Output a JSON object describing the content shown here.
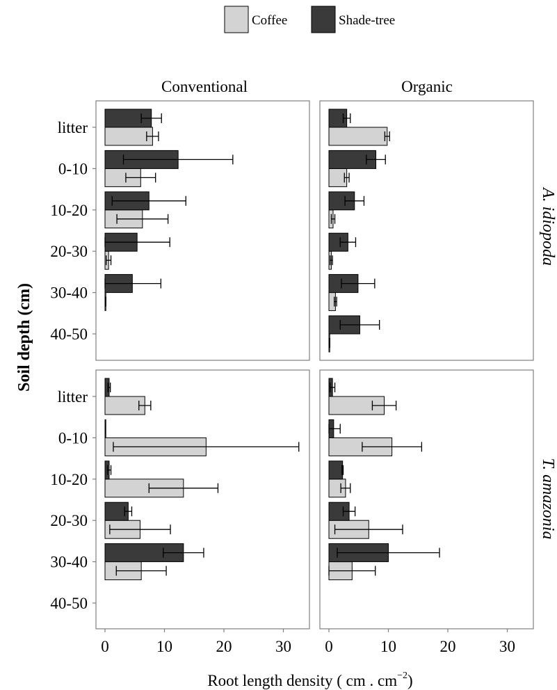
{
  "chart_data": {
    "type": "bar",
    "orientation": "horizontal",
    "faceted": true,
    "legend": {
      "placement": "top-center",
      "items": [
        {
          "label": "Coffee",
          "color": "#d3d3d3"
        },
        {
          "label": "Shade-tree",
          "color": "#3a3a3a"
        }
      ]
    },
    "xlabel_main": "Root length density ( cm . cm",
    "xlabel_sup": "−2",
    "xlabel_end": ")",
    "ylabel": "Soil depth (cm)",
    "categories": [
      "litter",
      "0-10",
      "10-20",
      "20-30",
      "30-40",
      "40-50"
    ],
    "xlim": [
      0,
      35
    ],
    "xticks": [
      0,
      10,
      20,
      30
    ],
    "grid": false,
    "column_labels": [
      "Conventional",
      "Organic"
    ],
    "row_labels": [
      "A. idiopoda",
      "T. amazonia"
    ],
    "panels": [
      {
        "column": "Conventional",
        "row": "A. idiopoda",
        "series": [
          {
            "name": "Coffee",
            "values": [
              8.0,
              6.0,
              6.3,
              0.6,
              0.1,
              null
            ],
            "errors": [
              1.0,
              2.5,
              4.3,
              0.4,
              0.05,
              null
            ]
          },
          {
            "name": "Shade-tree",
            "values": [
              7.8,
              12.3,
              7.4,
              5.4,
              4.6,
              null
            ],
            "errors": [
              1.7,
              9.2,
              6.2,
              5.5,
              4.8,
              null
            ]
          }
        ]
      },
      {
        "column": "Organic",
        "row": "A. idiopoda",
        "series": [
          {
            "name": "Coffee",
            "values": [
              9.8,
              3.0,
              0.7,
              0.4,
              1.1,
              0.1
            ],
            "errors": [
              0.4,
              0.4,
              0.3,
              0.2,
              0.2,
              0.05
            ]
          },
          {
            "name": "Shade-tree",
            "values": [
              3.0,
              7.9,
              4.3,
              3.2,
              4.9,
              5.2
            ],
            "errors": [
              0.6,
              1.6,
              1.6,
              1.3,
              2.8,
              3.3
            ]
          }
        ]
      },
      {
        "column": "Conventional",
        "row": "T. amazonia",
        "series": [
          {
            "name": "Coffee",
            "values": [
              6.7,
              17.0,
              13.2,
              5.9,
              6.1,
              null
            ],
            "errors": [
              1.0,
              15.6,
              5.8,
              5.1,
              4.2,
              null
            ]
          },
          {
            "name": "Shade-tree",
            "values": [
              0.7,
              0.05,
              0.7,
              3.9,
              13.2,
              null
            ],
            "errors": [
              0.2,
              0.02,
              0.3,
              0.6,
              3.4,
              null
            ]
          }
        ]
      },
      {
        "column": "Organic",
        "row": "T. amazonia",
        "series": [
          {
            "name": "Coffee",
            "values": [
              9.3,
              10.6,
              2.8,
              6.7,
              3.9,
              null
            ],
            "errors": [
              2.0,
              5.0,
              0.8,
              5.7,
              3.9,
              null
            ]
          },
          {
            "name": "Shade-tree",
            "values": [
              0.6,
              0.8,
              2.3,
              3.4,
              10.0,
              null
            ],
            "errors": [
              0.4,
              1.1,
              0.1,
              1.0,
              8.6,
              null
            ]
          }
        ]
      }
    ]
  }
}
